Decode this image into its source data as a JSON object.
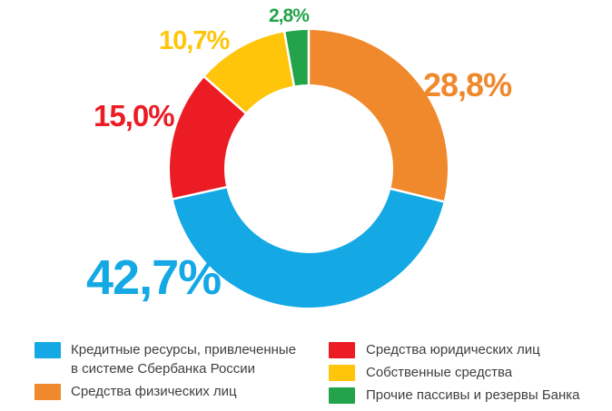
{
  "chart_data": {
    "type": "donut",
    "title": "",
    "unit": "%",
    "start_angle": "12 o'clock",
    "direction": "clockwise",
    "background": "#FFFFFF",
    "segments": [
      {
        "label": "Средства физических лиц",
        "value": 28.8,
        "display": "28,8%",
        "color": "#F0882C"
      },
      {
        "label": "Кредитные ресурсы, привлеченные в системе Сбербанка России",
        "value": 42.7,
        "display": "42,7%",
        "color": "#14A9E5"
      },
      {
        "label": "Средства юридических лиц",
        "value": 15.0,
        "display": "15,0%",
        "color": "#EB1C24"
      },
      {
        "label": "Собственные средства",
        "value": 10.7,
        "display": "10,7%",
        "color": "#FEC50A"
      },
      {
        "label": "Прочие пассивы и резервы Банка",
        "value": 2.8,
        "display": "2,8%",
        "color": "#23A44A"
      }
    ]
  },
  "legend": {
    "text_color": "#3F3F3F",
    "columns": [
      {
        "items": [
          {
            "label": "Кредитные ресурсы, привлеченные\nв системе Сбербанка России",
            "color": "#14A9E5"
          },
          {
            "label": "Средства физических лиц",
            "color": "#F0882C"
          }
        ]
      },
      {
        "items": [
          {
            "label": "Средства юридических лиц",
            "color": "#EB1C24"
          },
          {
            "label": "Собственные средства",
            "color": "#FEC50A"
          },
          {
            "label": "Прочие пассивы и резервы Банка",
            "color": "#23A44A"
          }
        ]
      }
    ]
  }
}
